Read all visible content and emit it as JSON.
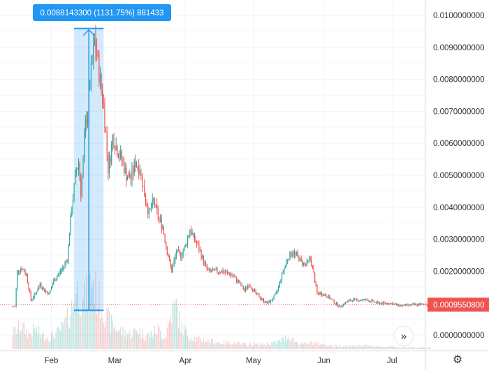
{
  "chart_data": {
    "type": "candlestick",
    "ylim": [
      0,
      0.0104
    ],
    "y_ticks": [
      "0.0100000000",
      "0.0090000000",
      "0.0080000000",
      "0.0070000000",
      "0.0060000000",
      "0.0050000000",
      "0.0040000000",
      "0.0030000000",
      "0.0020000000",
      "0.0000000000"
    ],
    "y_tick_values": [
      0.01,
      0.009,
      0.008,
      0.007,
      0.006,
      0.005,
      0.004,
      0.003,
      0.002,
      0.0
    ],
    "x_ticks": [
      "Feb",
      "Mar",
      "Apr",
      "May",
      "Jun",
      "Jul"
    ],
    "x_tick_days": [
      31,
      59,
      90,
      120,
      151,
      181
    ],
    "day_range": [
      13,
      200
    ],
    "last_price": {
      "label": "0.0009550800",
      "value": 0.00095508
    },
    "measure": {
      "label": "0.0088143300 (1131.75%) 881433",
      "start_day": 41,
      "end_day": 54,
      "low": 0.000779,
      "high": 0.00959
    },
    "colors": {
      "up": "#26a69a",
      "down": "#ef5350",
      "measure": "#2196f3",
      "price_tag": "#ef5350"
    },
    "price_points": [
      [
        15,
        0.0009
      ],
      [
        16,
        0.002
      ],
      [
        18,
        0.0021
      ],
      [
        20,
        0.0019
      ],
      [
        22,
        0.0011
      ],
      [
        24,
        0.0013
      ],
      [
        26,
        0.0016
      ],
      [
        28,
        0.0014
      ],
      [
        30,
        0.0013
      ],
      [
        32,
        0.0017
      ],
      [
        34,
        0.0019
      ],
      [
        36,
        0.0021
      ],
      [
        38,
        0.0024
      ],
      [
        40,
        0.004
      ],
      [
        42,
        0.0052
      ],
      [
        43,
        0.0054
      ],
      [
        44,
        0.0045
      ],
      [
        45,
        0.0054
      ],
      [
        46,
        0.0066
      ],
      [
        47,
        0.007
      ],
      [
        48,
        0.0079
      ],
      [
        49,
        0.0085
      ],
      [
        50,
        0.0092
      ],
      [
        51,
        0.0088
      ],
      [
        52,
        0.0082
      ],
      [
        53,
        0.0077
      ],
      [
        54,
        0.0072
      ],
      [
        55,
        0.0063
      ],
      [
        56,
        0.0052
      ],
      [
        57,
        0.0056
      ],
      [
        58,
        0.0062
      ],
      [
        60,
        0.0058
      ],
      [
        62,
        0.0055
      ],
      [
        64,
        0.005
      ],
      [
        66,
        0.0049
      ],
      [
        68,
        0.0054
      ],
      [
        70,
        0.0052
      ],
      [
        72,
        0.0044
      ],
      [
        74,
        0.0038
      ],
      [
        76,
        0.0042
      ],
      [
        78,
        0.0037
      ],
      [
        80,
        0.0034
      ],
      [
        82,
        0.0026
      ],
      [
        84,
        0.002
      ],
      [
        86,
        0.0026
      ],
      [
        88,
        0.0025
      ],
      [
        90,
        0.0028
      ],
      [
        92,
        0.0033
      ],
      [
        94,
        0.003
      ],
      [
        96,
        0.0027
      ],
      [
        98,
        0.0023
      ],
      [
        100,
        0.002
      ],
      [
        103,
        0.002
      ],
      [
        106,
        0.002
      ],
      [
        110,
        0.0019
      ],
      [
        113,
        0.0017
      ],
      [
        116,
        0.0014
      ],
      [
        118,
        0.0016
      ],
      [
        121,
        0.0013
      ],
      [
        124,
        0.0011
      ],
      [
        126,
        0.001
      ],
      [
        128,
        0.0011
      ],
      [
        130,
        0.0013
      ],
      [
        133,
        0.002
      ],
      [
        135,
        0.0024
      ],
      [
        137,
        0.0026
      ],
      [
        139,
        0.0025
      ],
      [
        141,
        0.0023
      ],
      [
        143,
        0.0022
      ],
      [
        145,
        0.0024
      ],
      [
        146,
        0.0021
      ],
      [
        148,
        0.0013
      ],
      [
        150,
        0.0013
      ],
      [
        153,
        0.0012
      ],
      [
        156,
        0.001
      ],
      [
        158,
        0.0009
      ],
      [
        160,
        0.001
      ],
      [
        163,
        0.0011
      ],
      [
        166,
        0.0011
      ],
      [
        170,
        0.0011
      ],
      [
        175,
        0.001
      ],
      [
        180,
        0.001
      ],
      [
        185,
        0.00092
      ],
      [
        190,
        0.00095
      ],
      [
        194,
        0.00096
      ],
      [
        198,
        0.00096
      ]
    ],
    "volume_points": [
      [
        14,
        0.1
      ],
      [
        18,
        0.14
      ],
      [
        21,
        0.09
      ],
      [
        24,
        0.12
      ],
      [
        27,
        0.08
      ],
      [
        30,
        0.07
      ],
      [
        33,
        0.09
      ],
      [
        36,
        0.13
      ],
      [
        39,
        0.2
      ],
      [
        41,
        0.3
      ],
      [
        43,
        0.36
      ],
      [
        45,
        0.28
      ],
      [
        47,
        0.34
      ],
      [
        49,
        0.44
      ],
      [
        51,
        0.32
      ],
      [
        53,
        0.27
      ],
      [
        55,
        0.2
      ],
      [
        57,
        0.16
      ],
      [
        60,
        0.12
      ],
      [
        63,
        0.1
      ],
      [
        66,
        0.09
      ],
      [
        69,
        0.12
      ],
      [
        72,
        0.08
      ],
      [
        75,
        0.09
      ],
      [
        78,
        0.12
      ],
      [
        81,
        0.07
      ],
      [
        84,
        0.22
      ],
      [
        86,
        0.26
      ],
      [
        88,
        0.14
      ],
      [
        91,
        0.09
      ],
      [
        95,
        0.06
      ],
      [
        100,
        0.05
      ],
      [
        105,
        0.04
      ],
      [
        110,
        0.04
      ],
      [
        115,
        0.03
      ],
      [
        120,
        0.03
      ],
      [
        125,
        0.03
      ],
      [
        130,
        0.04
      ],
      [
        133,
        0.06
      ],
      [
        136,
        0.08
      ],
      [
        139,
        0.04
      ],
      [
        143,
        0.03
      ],
      [
        146,
        0.04
      ],
      [
        150,
        0.03
      ],
      [
        155,
        0.02
      ],
      [
        160,
        0.02
      ],
      [
        170,
        0.02
      ],
      [
        180,
        0.015
      ],
      [
        190,
        0.01
      ],
      [
        198,
        0.01
      ]
    ],
    "volume_max_fraction": 0.5
  },
  "ui": {
    "scroll_right_icon": "double-chevron-right-icon",
    "settings_icon": "gear-icon",
    "scroll_right_glyph": "»",
    "settings_glyph": "⚙"
  }
}
